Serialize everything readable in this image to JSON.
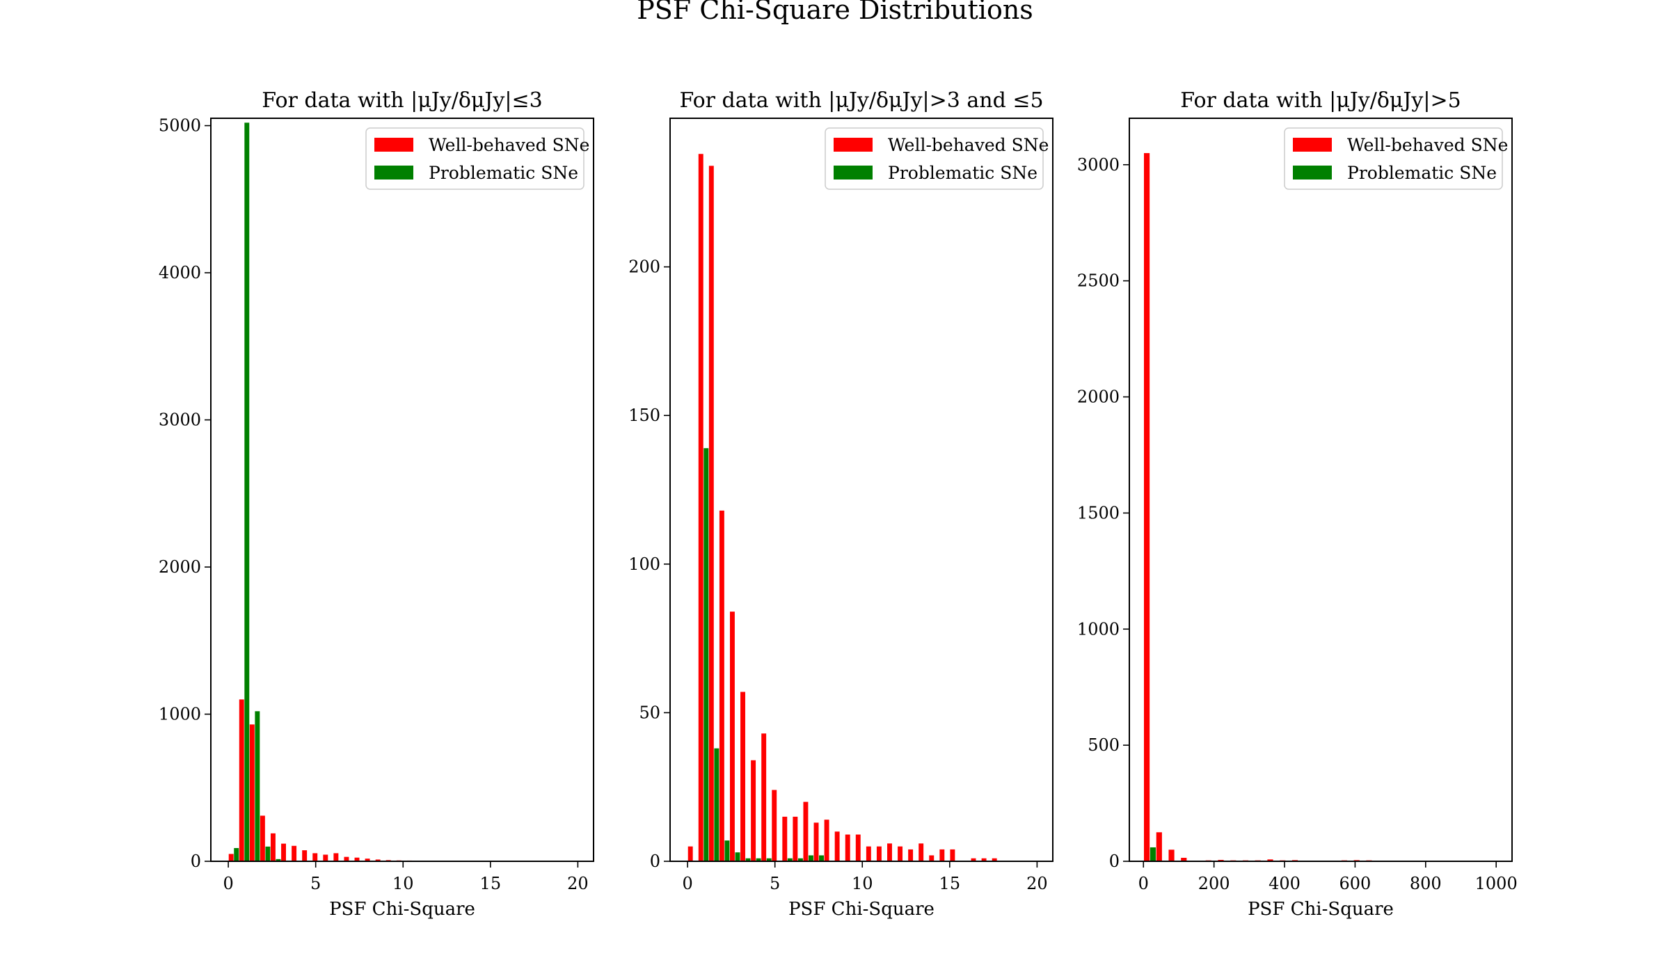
{
  "figure": {
    "suptitle": "PSF Chi-Square Distributions"
  },
  "colors": {
    "well": "#ff0000",
    "problematic": "#008000",
    "axis": "#000000",
    "background": "#ffffff"
  },
  "chart_data": [
    {
      "type": "bar",
      "title": "For data with |μJy/δμJy|≤3",
      "xlabel": "PSF Chi-Square",
      "ylabel": "",
      "xlim": [
        -1,
        20.9
      ],
      "ylim": [
        0,
        5050
      ],
      "xticks": [
        0,
        5,
        10,
        15,
        20
      ],
      "yticks": [
        0,
        1000,
        2000,
        3000,
        4000,
        5000
      ],
      "bin_width": 0.6,
      "legend": {
        "position": "upper right",
        "entries": [
          "Well-behaved SNe",
          "Problematic SNe"
        ]
      },
      "series": [
        {
          "name": "Well-behaved SNe",
          "color": "#ff0000",
          "x": [
            0.3,
            0.9,
            1.5,
            2.1,
            2.7,
            3.3,
            3.9,
            4.5,
            5.1,
            5.7,
            6.3,
            6.9,
            7.5,
            8.1,
            8.7,
            9.3,
            9.9,
            10.5,
            11.1,
            11.7,
            12.3
          ],
          "values": [
            50,
            1100,
            930,
            310,
            190,
            120,
            105,
            75,
            55,
            45,
            55,
            30,
            25,
            18,
            12,
            8,
            6,
            5,
            4,
            3,
            2
          ]
        },
        {
          "name": "Problematic SNe",
          "color": "#008000",
          "x": [
            0.3,
            0.9,
            1.5,
            2.1,
            2.7,
            3.3
          ],
          "values": [
            90,
            5020,
            1020,
            100,
            15,
            5
          ]
        }
      ]
    },
    {
      "type": "bar",
      "title": "For data with |μJy/δμJy|>3 and ≤5",
      "xlabel": "PSF Chi-Square",
      "ylabel": "",
      "xlim": [
        -1,
        20.9
      ],
      "ylim": [
        0,
        250
      ],
      "xticks": [
        0,
        5,
        10,
        15,
        20
      ],
      "yticks": [
        0,
        50,
        100,
        150,
        200
      ],
      "bin_width": 0.6,
      "legend": {
        "position": "upper right",
        "entries": [
          "Well-behaved SNe",
          "Problematic SNe"
        ]
      },
      "series": [
        {
          "name": "Well-behaved SNe",
          "color": "#ff0000",
          "x": [
            0.3,
            0.9,
            1.5,
            2.1,
            2.7,
            3.3,
            3.9,
            4.5,
            5.1,
            5.7,
            6.3,
            6.9,
            7.5,
            8.1,
            8.7,
            9.3,
            9.9,
            10.5,
            11.1,
            11.7,
            12.3,
            12.9,
            13.5,
            14.1,
            14.7,
            15.3,
            16.5,
            17.1,
            17.7
          ],
          "values": [
            5,
            238,
            234,
            118,
            84,
            57,
            34,
            43,
            24,
            15,
            15,
            20,
            13,
            14,
            10,
            9,
            9,
            5,
            5,
            6,
            5,
            4,
            6,
            2,
            4,
            4,
            1,
            1,
            1
          ]
        },
        {
          "name": "Problematic SNe",
          "color": "#008000",
          "x": [
            0.9,
            1.5,
            2.1,
            2.7,
            3.3,
            3.9,
            4.5,
            5.7,
            6.3,
            6.9,
            7.5
          ],
          "values": [
            139,
            38,
            7,
            3,
            1,
            1,
            1,
            1,
            1,
            2,
            2
          ]
        }
      ]
    },
    {
      "type": "bar",
      "title": "For data with |μJy/δμJy|>5",
      "xlabel": "PSF Chi-Square",
      "ylabel": "",
      "xlim": [
        -40,
        1045
      ],
      "ylim": [
        0,
        3200
      ],
      "xticks": [
        0,
        200,
        400,
        600,
        800,
        1000
      ],
      "yticks": [
        0,
        500,
        1000,
        1500,
        2000,
        2500,
        3000
      ],
      "bin_width": 35,
      "legend": {
        "position": "upper right",
        "entries": [
          "Well-behaved SNe",
          "Problematic SNe"
        ]
      },
      "series": [
        {
          "name": "Well-behaved SNe",
          "color": "#ff0000",
          "x": [
            17.5,
            52.5,
            87.5,
            122.5,
            192.5,
            227.5,
            262.5,
            297.5,
            332.5,
            367.5,
            402.5,
            437.5,
            472.5,
            507.5,
            542.5,
            577.5,
            612.5,
            647.5,
            717.5,
            752.5,
            822.5,
            857.5
          ],
          "values": [
            3050,
            125,
            50,
            15,
            4,
            6,
            4,
            4,
            4,
            8,
            4,
            5,
            3,
            3,
            3,
            4,
            5,
            4,
            3,
            3,
            2,
            2
          ]
        },
        {
          "name": "Problematic SNe",
          "color": "#008000",
          "x": [
            17.5,
            52.5
          ],
          "values": [
            60,
            3
          ]
        }
      ]
    }
  ]
}
